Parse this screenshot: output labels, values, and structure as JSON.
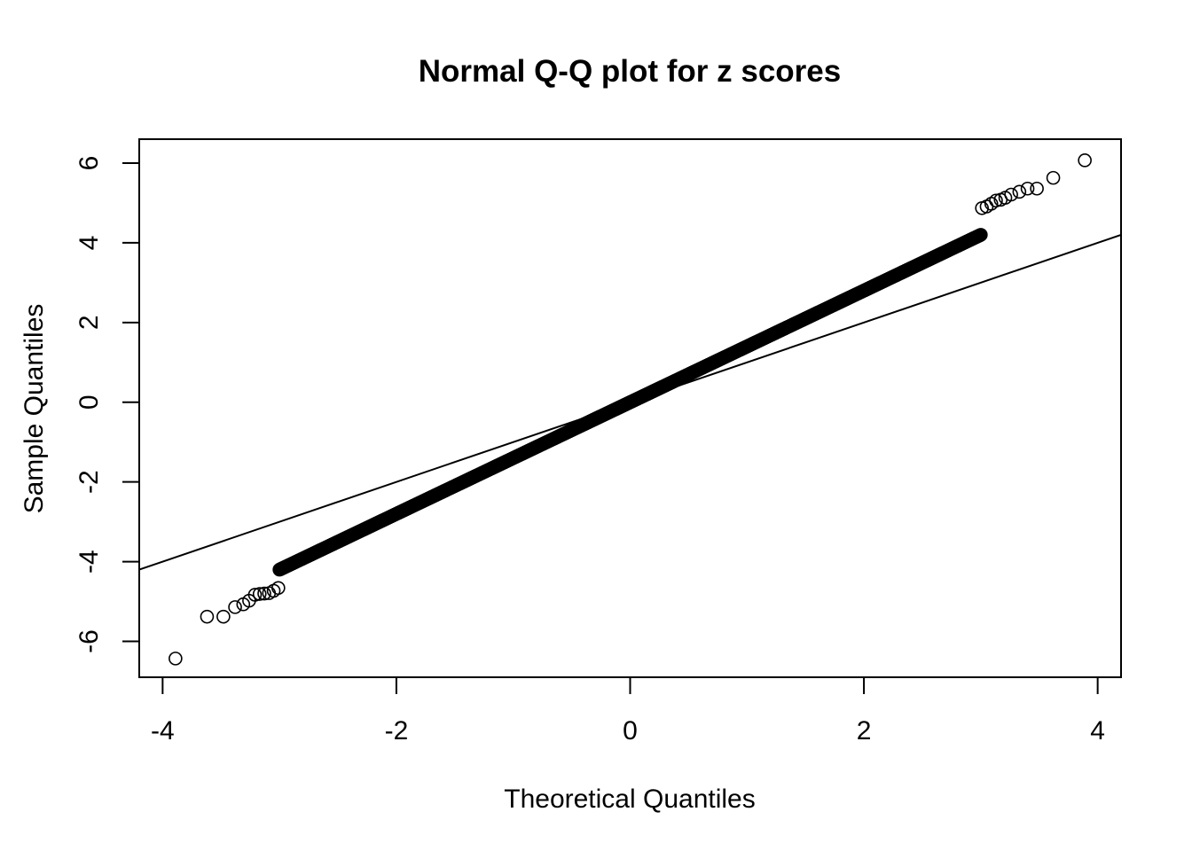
{
  "chart_data": {
    "type": "scatter",
    "title": "Normal Q-Q plot for z scores",
    "xlabel": "Theoretical Quantiles",
    "ylabel": "Sample Quantiles",
    "xlim": [
      -4.2,
      4.2
    ],
    "ylim": [
      -6.9,
      6.6
    ],
    "x_ticks": [
      -4,
      -2,
      0,
      2,
      4
    ],
    "y_ticks": [
      -6,
      -4,
      -2,
      0,
      2,
      4,
      6
    ],
    "grid": false,
    "legend": "none",
    "marker": "open-circle",
    "reference_line": {
      "slope": 1,
      "intercept": 0
    },
    "sample_slope_approx": 1.4,
    "series": [
      {
        "points": [
          {
            "x": -3.89,
            "y": -6.43
          },
          {
            "x": -3.62,
            "y": -5.38
          },
          {
            "x": -3.48,
            "y": -5.38
          },
          {
            "x": -3.38,
            "y": -5.14
          },
          {
            "x": -3.31,
            "y": -5.07
          },
          {
            "x": -3.26,
            "y": -4.98
          },
          {
            "x": -3.21,
            "y": -4.83
          },
          {
            "x": -3.17,
            "y": -4.81
          },
          {
            "x": -3.13,
            "y": -4.8
          },
          {
            "x": -3.09,
            "y": -4.79
          },
          {
            "x": -3.05,
            "y": -4.73
          },
          {
            "x": -3.01,
            "y": -4.66
          },
          {
            "x": 3.01,
            "y": 4.87
          },
          {
            "x": 3.05,
            "y": 4.91
          },
          {
            "x": 3.09,
            "y": 4.98
          },
          {
            "x": 3.13,
            "y": 5.06
          },
          {
            "x": 3.17,
            "y": 5.08
          },
          {
            "x": 3.21,
            "y": 5.13
          },
          {
            "x": 3.26,
            "y": 5.21
          },
          {
            "x": 3.33,
            "y": 5.28
          },
          {
            "x": 3.4,
            "y": 5.36
          },
          {
            "x": 3.48,
            "y": 5.36
          },
          {
            "x": 3.62,
            "y": 5.63
          },
          {
            "x": 3.89,
            "y": 6.07
          }
        ],
        "dense_band": {
          "x_from": -3.0,
          "x_to": 3.0,
          "slope": 1.4,
          "intercept": 0.0,
          "count": 700
        }
      }
    ]
  }
}
